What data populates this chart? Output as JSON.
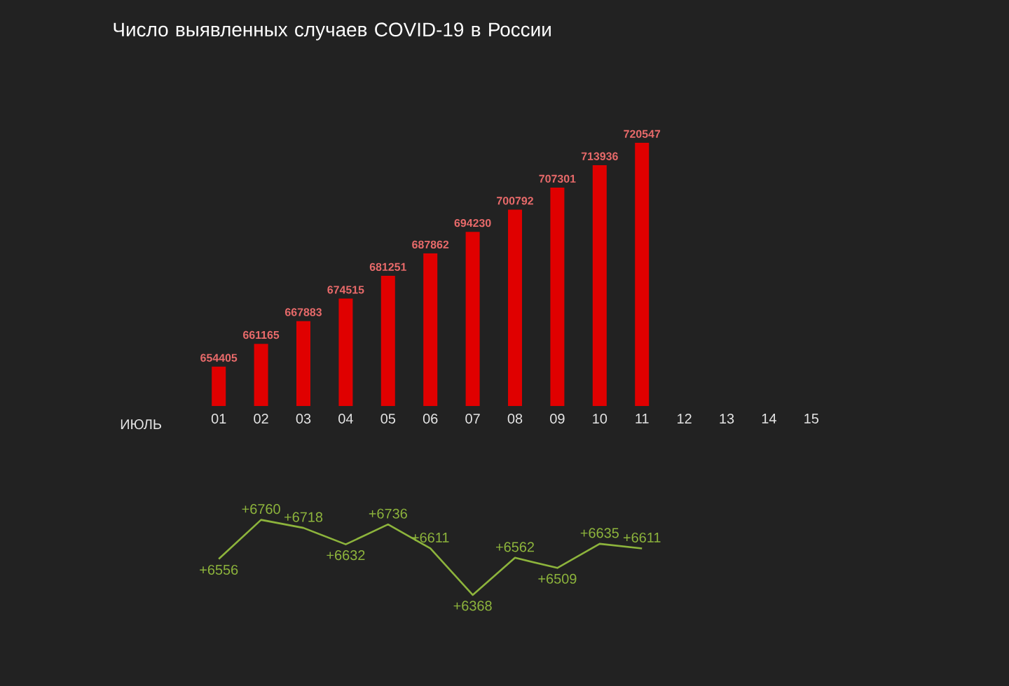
{
  "chart_data": [
    {
      "type": "bar",
      "title": "Число выявленных случаев COVID-19 в России",
      "xlabel": "ИЮЛЬ",
      "categories": [
        "01",
        "02",
        "03",
        "04",
        "05",
        "06",
        "07",
        "08",
        "09",
        "10",
        "11",
        "12",
        "13",
        "14",
        "15"
      ],
      "values": [
        654405,
        661165,
        667883,
        674515,
        681251,
        687862,
        694230,
        700792,
        707301,
        713936,
        720547,
        null,
        null,
        null,
        null
      ],
      "color": "#e00000",
      "ylim": [
        642800,
        720547
      ],
      "data_labels": true,
      "tick_labels": "x"
    },
    {
      "type": "line",
      "categories": [
        null,
        null,
        null,
        null,
        null,
        null,
        null,
        null,
        null,
        null,
        null
      ],
      "values": [
        6556,
        6760,
        6718,
        6632,
        6736,
        6611,
        6368,
        6562,
        6509,
        6635,
        6611
      ],
      "value_labels": [
        "+6556",
        "+6760",
        "+6718",
        "+6632",
        "+6736",
        "+6611",
        "+6368",
        "+6562",
        "+6509",
        "+6635",
        "+6611"
      ],
      "color": "#8db43c",
      "tick_labels": false
    }
  ]
}
